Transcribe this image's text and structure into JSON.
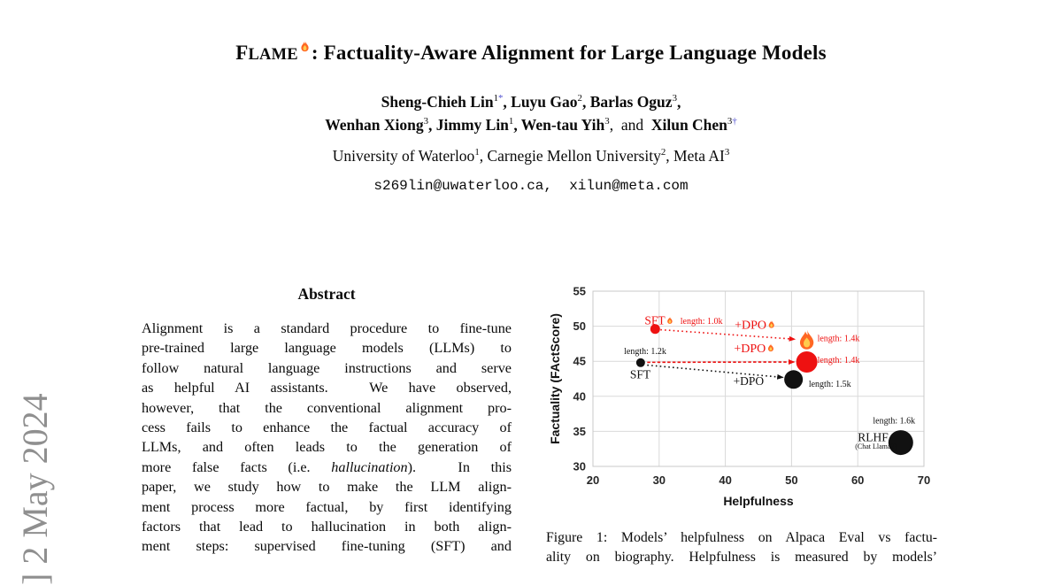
{
  "colors": {
    "red": "#ee1111",
    "black": "#111111",
    "superscript_blue": "#5050d0",
    "sidebar_gray": "#8f8f8f",
    "grid_gray": "#d9d9d9"
  },
  "sidebar": {
    "arxiv_label": "] 2 May 2024"
  },
  "header": {
    "title_initial": "F",
    "title_smallcaps": "LAME",
    "title_rest": ": Factuality-Aware Alignment for Large Language Models",
    "authors_line1": [
      {
        "t": "Sheng-Chieh Lin",
        "b": true
      },
      {
        "sup": "1"
      },
      {
        "sup": "*",
        "blue": true
      },
      {
        "t": ", ",
        "b": true
      },
      {
        "t": "Luyu Gao",
        "b": true
      },
      {
        "sup": "2"
      },
      {
        "t": ", ",
        "b": true
      },
      {
        "t": "Barlas Oguz",
        "b": true
      },
      {
        "sup": "3"
      },
      {
        "t": ",",
        "b": true
      }
    ],
    "authors_line2": [
      {
        "t": "Wenhan Xiong",
        "b": true
      },
      {
        "sup": "3"
      },
      {
        "t": ", ",
        "b": true
      },
      {
        "t": "Jimmy Lin",
        "b": true
      },
      {
        "sup": "1"
      },
      {
        "t": ", ",
        "b": true
      },
      {
        "t": "Wen-tau Yih",
        "b": true
      },
      {
        "sup": "3"
      },
      {
        "t": ",  and  "
      },
      {
        "t": "Xilun Chen",
        "b": true
      },
      {
        "sup": "3"
      },
      {
        "sup": "†",
        "blue": true
      }
    ],
    "affiliation": [
      {
        "t": "University of Waterloo"
      },
      {
        "sup": "1"
      },
      {
        "t": ", Carnegie Mellon University"
      },
      {
        "sup": "2"
      },
      {
        "t": ", Meta AI"
      },
      {
        "sup": "3"
      }
    ],
    "email": "s269lin@uwaterloo.ca,  xilun@meta.com"
  },
  "abstract": {
    "heading": "Abstract",
    "lines": [
      [
        {
          "t": "Alignment is a standard procedure to fine-tune"
        }
      ],
      [
        {
          "t": "pre-trained large language models (LLMs) to"
        }
      ],
      [
        {
          "t": "follow natural language instructions and serve"
        }
      ],
      [
        {
          "t": "as helpful AI assistants.  We have observed,"
        }
      ],
      [
        {
          "t": "however, that the conventional alignment pro-"
        }
      ],
      [
        {
          "t": "cess fails to enhance the factual accuracy of"
        }
      ],
      [
        {
          "t": "LLMs, and often leads to the generation of"
        }
      ],
      [
        {
          "t": "more false facts (i.e. "
        },
        {
          "t": "hallucination",
          "i": true
        },
        {
          "t": ").  In this"
        }
      ],
      [
        {
          "t": "paper, we study how to make the LLM align-"
        }
      ],
      [
        {
          "t": "ment process more factual, by first identifying"
        }
      ],
      [
        {
          "t": "factors that lead to hallucination in both align-"
        }
      ],
      [
        {
          "t": "ment steps: supervised fine-tuning (SFT) and"
        }
      ]
    ]
  },
  "figure": {
    "caption_lines": [
      [
        {
          "t": "Figure 1: Models’ helpfulness on Alpaca Eval vs factu-"
        }
      ],
      [
        {
          "t": "ality on biography. Helpfulness is measured by models’"
        }
      ]
    ]
  },
  "chart_data": {
    "type": "scatter",
    "title": "",
    "xlabel": "Helpfulness",
    "ylabel": "Factuality (FActScore)",
    "xlim": [
      20,
      70
    ],
    "ylim": [
      30,
      55
    ],
    "xticks": [
      20,
      30,
      40,
      50,
      60,
      70
    ],
    "yticks": [
      30,
      35,
      40,
      45,
      50,
      55
    ],
    "grid": true,
    "legend": "none",
    "points": [
      {
        "label": "SFT (FLAME)",
        "x": 29.4,
        "y": 49.6,
        "marker": "dot",
        "color": "#ee1111",
        "r": 5.5,
        "length": "1.0k"
      },
      {
        "label": "SFT",
        "x": 27.2,
        "y": 44.8,
        "marker": "dot",
        "color": "#111111",
        "r": 5,
        "length": "1.2k"
      },
      {
        "label": "FLAME SFT+DPO",
        "x": 52.3,
        "y": 48.05,
        "marker": "flame",
        "size": 24,
        "length": "1.4k"
      },
      {
        "label": "SFT+DPO (FLAME reward)",
        "x": 52.3,
        "y": 44.9,
        "marker": "dot",
        "color": "#ee1111",
        "r": 12,
        "length": "1.4k"
      },
      {
        "label": "SFT+DPO",
        "x": 50.3,
        "y": 42.4,
        "marker": "dot",
        "color": "#111111",
        "r": 10.5,
        "length": "1.5k"
      },
      {
        "label": "RLHF (Chat Llama2)",
        "x": 66.5,
        "y": 33.4,
        "marker": "dot",
        "color": "#111111",
        "r": 14,
        "length": "1.6k"
      }
    ],
    "arrows": [
      {
        "x1": 30.2,
        "y1": 49.5,
        "x2": 50.5,
        "y2": 48.15,
        "color": "#ee1111",
        "dash": "1.6 3.2"
      },
      {
        "x1": 28.2,
        "y1": 44.85,
        "x2": 50.4,
        "y2": 44.9,
        "color": "#ee1111",
        "dash": "3.5 2.2"
      },
      {
        "x1": 28.2,
        "y1": 44.45,
        "x2": 48.7,
        "y2": 42.7,
        "color": "#111111",
        "dash": "1.6 3.2"
      }
    ],
    "annotations": [
      {
        "text": "SFT",
        "x": 27.8,
        "y": 50.25,
        "size": 13.5,
        "color": "#ee1111",
        "flame": 10
      },
      {
        "text": "length: 1.0k",
        "x": 33.2,
        "y": 50.35,
        "size": 10,
        "color": "#ee1111"
      },
      {
        "text": "+DPO",
        "x": 41.4,
        "y": 49.65,
        "size": 14,
        "color": "#ee1111",
        "flame": 11
      },
      {
        "text": "length: 1.4k",
        "x": 53.9,
        "y": 47.85,
        "size": 10,
        "color": "#ee1111"
      },
      {
        "text": "length: 1.2k",
        "x": 24.7,
        "y": 46.05,
        "size": 10,
        "color": "#111111"
      },
      {
        "text": "+DPO",
        "x": 41.3,
        "y": 46.3,
        "size": 14,
        "color": "#ee1111",
        "flame": 11
      },
      {
        "text": "length: 1.4k",
        "x": 53.9,
        "y": 44.75,
        "size": 10,
        "color": "#ee1111"
      },
      {
        "text": "SFT",
        "x": 25.6,
        "y": 42.55,
        "size": 13.5,
        "color": "#111111"
      },
      {
        "text": "+DPO",
        "x": 41.2,
        "y": 41.6,
        "size": 13.5,
        "color": "#111111"
      },
      {
        "text": "length: 1.5k",
        "x": 52.6,
        "y": 41.35,
        "size": 10,
        "color": "#111111"
      },
      {
        "text": "length: 1.6k",
        "x": 62.3,
        "y": 36.1,
        "size": 10,
        "color": "#111111"
      },
      {
        "text": "RLHF",
        "x": 60.0,
        "y": 33.6,
        "size": 13.5,
        "color": "#111111"
      },
      {
        "text": "(Chat Llama2)",
        "x": 59.6,
        "y": 32.55,
        "size": 8,
        "color": "#111111"
      }
    ]
  }
}
